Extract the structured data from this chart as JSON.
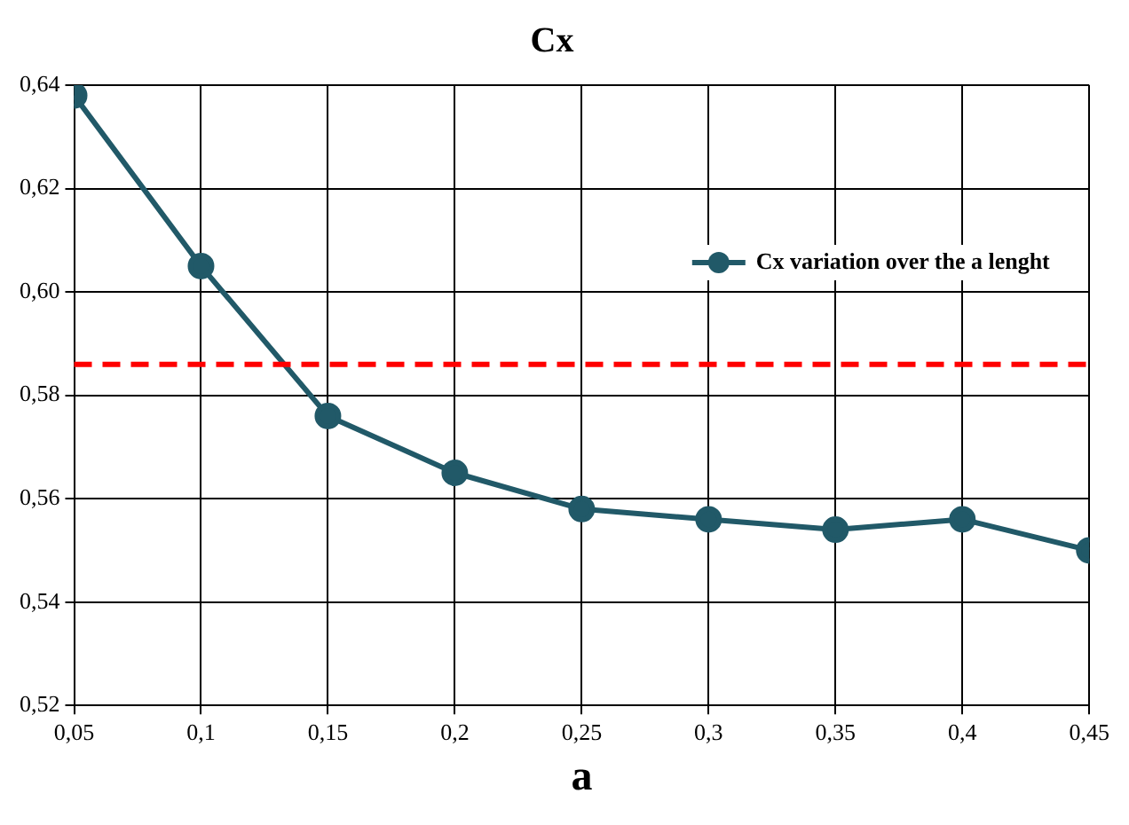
{
  "chart_data": {
    "type": "line",
    "title": "Cx",
    "xlabel": "a",
    "x": [
      0.05,
      0.1,
      0.15,
      0.2,
      0.25,
      0.3,
      0.35,
      0.4,
      0.45
    ],
    "series": [
      {
        "name": "Cx variation over the a lenght",
        "color": "#215968",
        "values": [
          0.638,
          0.605,
          0.576,
          0.565,
          0.558,
          0.556,
          0.554,
          0.556,
          0.55
        ]
      }
    ],
    "xlim": [
      0.05,
      0.45
    ],
    "xticks": [
      {
        "value": 0.05,
        "label": "0,05"
      },
      {
        "value": 0.1,
        "label": "0,1"
      },
      {
        "value": 0.15,
        "label": "0,15"
      },
      {
        "value": 0.2,
        "label": "0,2"
      },
      {
        "value": 0.25,
        "label": "0,25"
      },
      {
        "value": 0.3,
        "label": "0,3"
      },
      {
        "value": 0.35,
        "label": "0,35"
      },
      {
        "value": 0.4,
        "label": "0,4"
      },
      {
        "value": 0.45,
        "label": "0,45"
      }
    ],
    "ylim": [
      0.52,
      0.64
    ],
    "yticks": [
      {
        "value": 0.52,
        "label": "0,52"
      },
      {
        "value": 0.54,
        "label": "0,54"
      },
      {
        "value": 0.56,
        "label": "0,56"
      },
      {
        "value": 0.58,
        "label": "0,58"
      },
      {
        "value": 0.6,
        "label": "0,60"
      },
      {
        "value": 0.62,
        "label": "0,62"
      },
      {
        "value": 0.64,
        "label": "0,64"
      }
    ],
    "ref_lines": [
      {
        "axis": "y",
        "value": 0.586,
        "color": "#ff0000",
        "line_style": "dashed"
      }
    ],
    "grid": true,
    "legend": "top right",
    "marker": "circle",
    "line_style": "solid"
  }
}
